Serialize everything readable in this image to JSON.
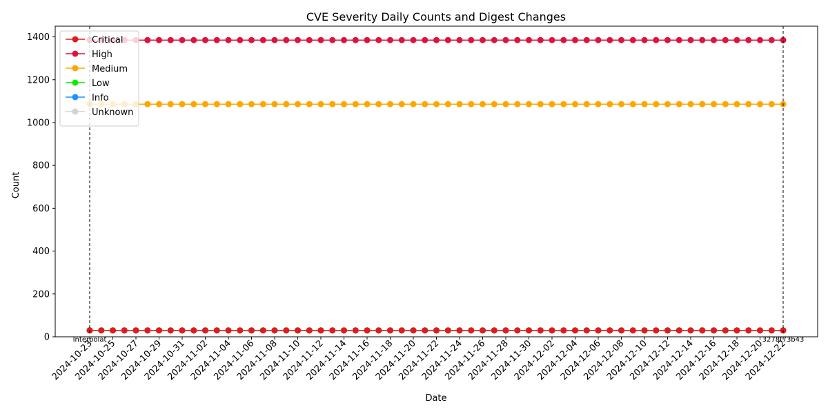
{
  "chart_data": {
    "type": "line",
    "title": "CVE Severity Daily Counts and Digest Changes",
    "xlabel": "Date",
    "ylabel": "Count",
    "ylim": [
      0,
      1450
    ],
    "yticks": [
      0,
      200,
      400,
      600,
      800,
      1000,
      1200,
      1400
    ],
    "x_start": "2024-10-23",
    "x_end": "2024-12-22",
    "xtick_labels": [
      "2024-10-23",
      "2024-10-25",
      "2024-10-27",
      "2024-10-29",
      "2024-10-31",
      "2024-11-02",
      "2024-11-04",
      "2024-11-06",
      "2024-11-08",
      "2024-11-10",
      "2024-11-12",
      "2024-11-14",
      "2024-11-16",
      "2024-11-18",
      "2024-11-20",
      "2024-11-22",
      "2024-11-24",
      "2024-11-26",
      "2024-11-28",
      "2024-11-30",
      "2024-12-02",
      "2024-12-04",
      "2024-12-06",
      "2024-12-08",
      "2024-12-10",
      "2024-12-12",
      "2024-12-14",
      "2024-12-16",
      "2024-12-18",
      "2024-12-20",
      "2024-12-22"
    ],
    "grid": false,
    "legend_position": "top-left",
    "series": [
      {
        "name": "Critical",
        "color": "#e31a1c",
        "constant_value": 30
      },
      {
        "name": "High",
        "color": "#dc143c",
        "constant_value": 1385
      },
      {
        "name": "Medium",
        "color": "#ffa500",
        "constant_value": 1086
      },
      {
        "name": "Low",
        "color": "#00ee00",
        "constant_value": 30
      },
      {
        "name": "Info",
        "color": "#1e90ff",
        "constant_value": 30
      },
      {
        "name": "Unknown",
        "color": "#d3d3d3",
        "constant_value": 30
      }
    ],
    "digest_markers": [
      {
        "date": "2024-10-23",
        "label": "Interpolat"
      },
      {
        "date": "2024-12-22",
        "label": "3278f73b43"
      }
    ]
  }
}
